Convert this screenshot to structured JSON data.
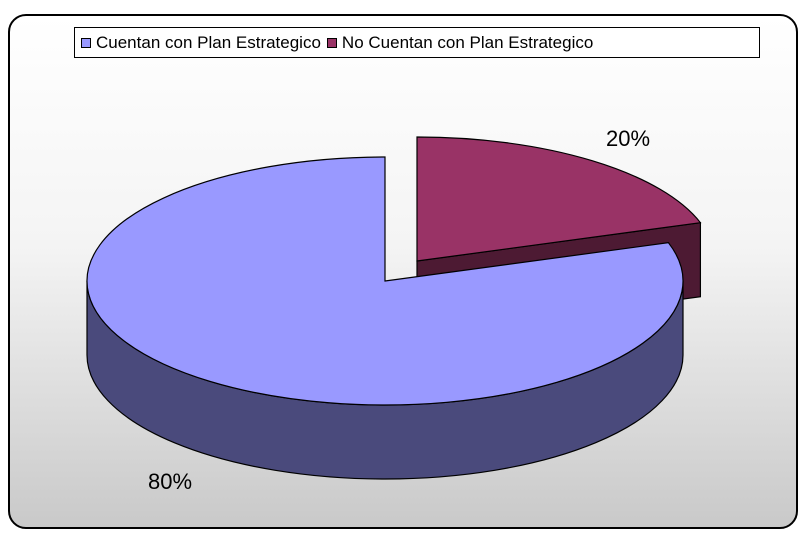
{
  "chart_data": {
    "type": "pie",
    "style": "3d-exploded",
    "categories": [
      "Cuentan con Plan Estrategico",
      "No Cuentan con Plan Estrategico"
    ],
    "values": [
      80,
      20
    ],
    "data_labels": [
      "80%",
      "20%"
    ],
    "colors": [
      "#9999ff",
      "#993366"
    ],
    "side_colors": [
      "#4a4a7c",
      "#4d1a33"
    ],
    "legend_position": "top",
    "title": ""
  }
}
